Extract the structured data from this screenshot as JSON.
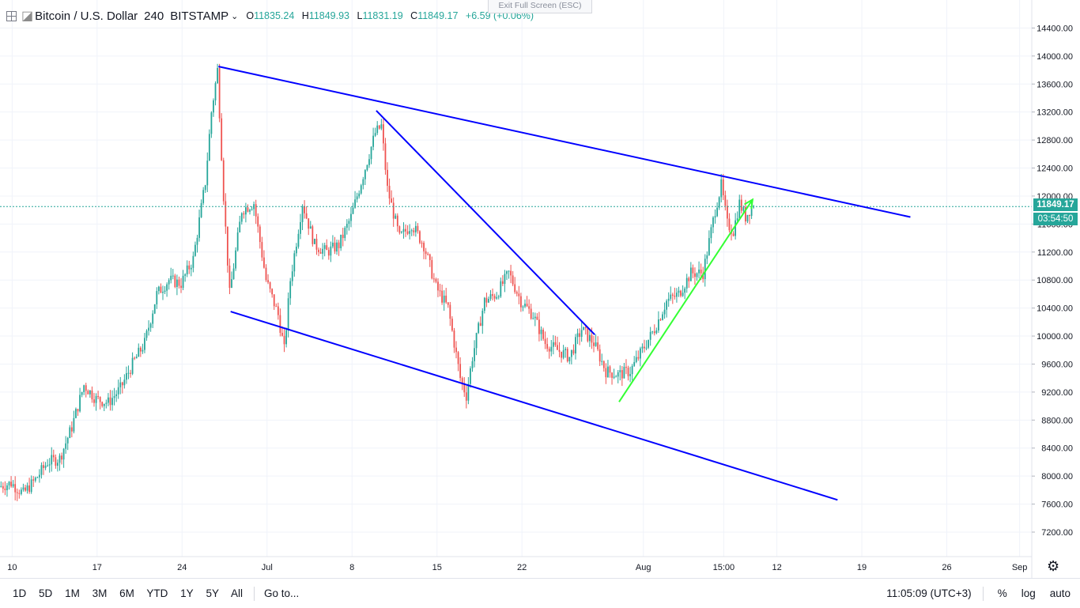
{
  "header": {
    "symbol": "Bitcoin / U.S. Dollar",
    "interval": "240",
    "exchange": "BITSTAMP",
    "open_label": "O",
    "open": "11835.24",
    "high_label": "H",
    "high": "11849.93",
    "low_label": "L",
    "low": "11831.19",
    "close_label": "C",
    "close": "11849.17",
    "change": "+6.59 (+0.06%)",
    "exit_fullscreen": "Exit Full Screen (ESC)"
  },
  "price_scale": {
    "last_price": "11849.17",
    "countdown": "03:54:50"
  },
  "bottom_bar": {
    "timeframes": [
      "1D",
      "5D",
      "1M",
      "3M",
      "6M",
      "YTD",
      "1Y",
      "5Y",
      "All"
    ],
    "goto": "Go to...",
    "clock": "11:05:09 (UTC+3)",
    "percent": "%",
    "log": "log",
    "auto": "auto"
  },
  "colors": {
    "up": "#26a69a",
    "down": "#ef5350",
    "trendline": "#0000ff",
    "arrow": "#33ff33",
    "price_line": "#26a69a"
  },
  "chart_data": {
    "type": "candlestick",
    "symbol": "Bitcoin / U.S. Dollar",
    "interval": "240",
    "exchange": "BITSTAMP",
    "y_ticks": [
      7200,
      7600,
      8000,
      8400,
      8800,
      9200,
      9600,
      10000,
      10400,
      10800,
      11200,
      11600,
      12000,
      12400,
      12800,
      13200,
      13600,
      14000,
      14400
    ],
    "ylim": [
      6850,
      14800
    ],
    "x_labels": [
      "10",
      "17",
      "24",
      "Jul",
      "8",
      "15",
      "22",
      "Aug",
      "15:00",
      "12",
      "19",
      "26",
      "Sep"
    ],
    "x_domain_days": [
      "2019-06-09",
      "2019-09-02"
    ],
    "x_label_dates": [
      "2019-06-10",
      "2019-06-17",
      "2019-06-24",
      "2019-07-01",
      "2019-07-08",
      "2019-07-15",
      "2019-07-22",
      "2019-08-01",
      "2019-08-07 15:00",
      "2019-08-12",
      "2019-08-19",
      "2019-08-26",
      "2019-09-01"
    ],
    "price_path": [
      [
        "2019-06-09",
        7850
      ],
      [
        "2019-06-10",
        7900
      ],
      [
        "2019-06-11",
        7750
      ],
      [
        "2019-06-12",
        7950
      ],
      [
        "2019-06-13",
        8200
      ],
      [
        "2019-06-14",
        8250
      ],
      [
        "2019-06-15",
        8700
      ],
      [
        "2019-06-16",
        9300
      ],
      [
        "2019-06-17",
        9100
      ],
      [
        "2019-06-18",
        9050
      ],
      [
        "2019-06-19",
        9250
      ],
      [
        "2019-06-20",
        9600
      ],
      [
        "2019-06-21",
        9900
      ],
      [
        "2019-06-22",
        10600
      ],
      [
        "2019-06-23",
        10800
      ],
      [
        "2019-06-24",
        10750
      ],
      [
        "2019-06-25",
        11100
      ],
      [
        "2019-06-26",
        12200
      ],
      [
        "2019-06-26 12:00",
        13200
      ],
      [
        "2019-06-27",
        13800
      ],
      [
        "2019-06-27 12:00",
        12000
      ],
      [
        "2019-06-28",
        10600
      ],
      [
        "2019-06-29",
        11800
      ],
      [
        "2019-06-30",
        11900
      ],
      [
        "2019-07-01",
        10800
      ],
      [
        "2019-07-02",
        10300
      ],
      [
        "2019-07-02 12:00",
        9800
      ],
      [
        "2019-07-03",
        10800
      ],
      [
        "2019-07-04",
        11900
      ],
      [
        "2019-07-05",
        11300
      ],
      [
        "2019-07-06",
        11200
      ],
      [
        "2019-07-07",
        11300
      ],
      [
        "2019-07-08",
        11700
      ],
      [
        "2019-07-09",
        12300
      ],
      [
        "2019-07-10",
        12900
      ],
      [
        "2019-07-10 12:00",
        13000
      ],
      [
        "2019-07-11",
        12100
      ],
      [
        "2019-07-12",
        11400
      ],
      [
        "2019-07-13",
        11600
      ],
      [
        "2019-07-14",
        11300
      ],
      [
        "2019-07-15",
        10700
      ],
      [
        "2019-07-16",
        10400
      ],
      [
        "2019-07-17",
        9400
      ],
      [
        "2019-07-17 12:00",
        9150
      ],
      [
        "2019-07-18",
        9700
      ],
      [
        "2019-07-19",
        10500
      ],
      [
        "2019-07-20",
        10600
      ],
      [
        "2019-07-21",
        10900
      ],
      [
        "2019-07-22",
        10500
      ],
      [
        "2019-07-23",
        10300
      ],
      [
        "2019-07-24",
        9900
      ],
      [
        "2019-07-25",
        9800
      ],
      [
        "2019-07-26",
        9700
      ],
      [
        "2019-07-27",
        10100
      ],
      [
        "2019-07-28",
        9900
      ],
      [
        "2019-07-29",
        9500
      ],
      [
        "2019-07-30",
        9450
      ],
      [
        "2019-07-31",
        9500
      ],
      [
        "2019-08-01",
        9800
      ],
      [
        "2019-08-02",
        10100
      ],
      [
        "2019-08-03",
        10500
      ],
      [
        "2019-08-04",
        10600
      ],
      [
        "2019-08-05",
        10900
      ],
      [
        "2019-08-06",
        10900
      ],
      [
        "2019-08-07",
        11800
      ],
      [
        "2019-08-07 12:00",
        12150
      ],
      [
        "2019-08-08",
        11600
      ],
      [
        "2019-08-08 12:00",
        11500
      ],
      [
        "2019-08-09",
        11900
      ],
      [
        "2019-08-09 12:00",
        11700
      ],
      [
        "2019-08-10",
        11849.17
      ]
    ],
    "annotations": [
      {
        "type": "trendline",
        "color": "#0000ff",
        "points": [
          [
            "2019-06-27",
            13850
          ],
          [
            "2019-08-23",
            11700
          ]
        ]
      },
      {
        "type": "trendline",
        "color": "#0000ff",
        "points": [
          [
            "2019-06-28",
            10350
          ],
          [
            "2019-08-17",
            7660
          ]
        ]
      },
      {
        "type": "trendline",
        "color": "#0000ff",
        "points": [
          [
            "2019-07-10",
            13220
          ],
          [
            "2019-07-28",
            10020
          ]
        ]
      },
      {
        "type": "arrow",
        "color": "#33ff33",
        "points": [
          [
            "2019-07-30",
            9060
          ],
          [
            "2019-08-10",
            11950
          ]
        ]
      }
    ]
  }
}
